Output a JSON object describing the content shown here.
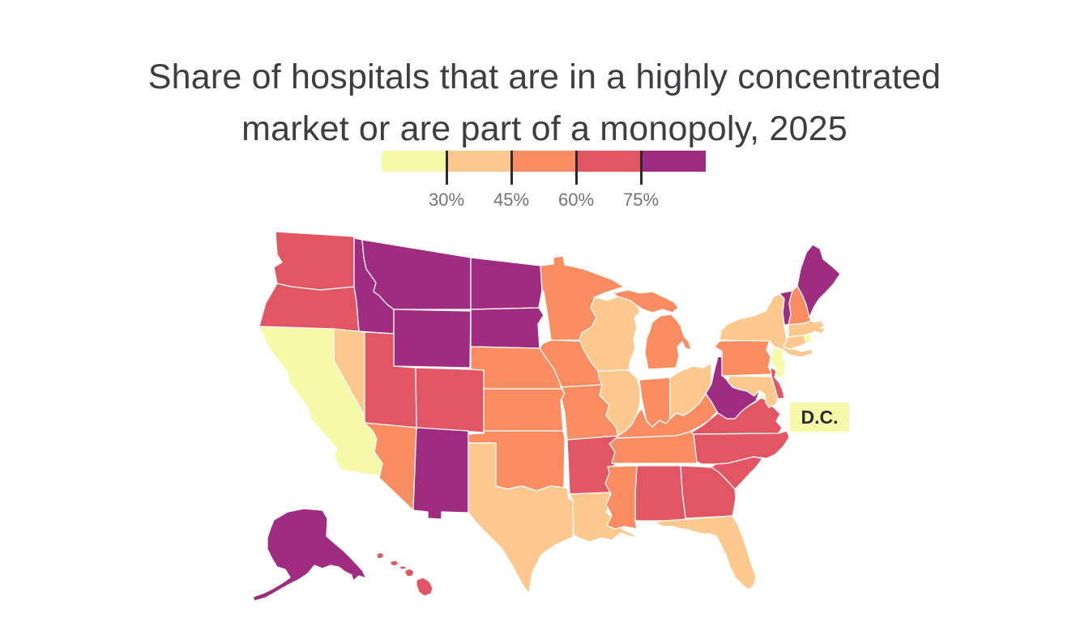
{
  "header": {
    "title_line1": "Share of hospitals that are in a highly concentrated",
    "title_line2": "market or are part of a monopoly, 2025"
  },
  "dc_callout": {
    "text": "D.C.",
    "background": "#F6F9A8"
  },
  "chart_data": {
    "type": "choropleth",
    "title": "Share of hospitals that are in a highly concentrated market or are part of a monopoly, 2025",
    "unit": "percent of hospitals",
    "legend": {
      "position": "top-center",
      "tick_labels": [
        "30%",
        "45%",
        "60%",
        "75%"
      ],
      "tick_values": [
        30,
        45,
        60,
        75
      ],
      "tick_color": "#2a2a2e",
      "buckets": [
        {
          "key": "under_30",
          "range": "<30%",
          "color": "#F6F9A8"
        },
        {
          "key": "30_45",
          "range": "30-45%",
          "color": "#FCC88D"
        },
        {
          "key": "45_60",
          "range": "45-60%",
          "color": "#F98C60"
        },
        {
          "key": "60_75",
          "range": "60-75%",
          "color": "#E25562"
        },
        {
          "key": "over_75",
          "range": ">75%",
          "color": "#A02C81"
        }
      ]
    },
    "states": [
      {
        "abbr": "CA",
        "name": "California",
        "bucket": "under_30"
      },
      {
        "abbr": "NJ",
        "name": "New Jersey",
        "bucket": "under_30"
      },
      {
        "abbr": "RI",
        "name": "Rhode Island",
        "bucket": "under_30"
      },
      {
        "abbr": "DC",
        "name": "District of Columbia",
        "bucket": "under_30"
      },
      {
        "abbr": "NV",
        "name": "Nevada",
        "bucket": "30_45"
      },
      {
        "abbr": "TX",
        "name": "Texas",
        "bucket": "30_45"
      },
      {
        "abbr": "LA",
        "name": "Louisiana",
        "bucket": "30_45"
      },
      {
        "abbr": "FL",
        "name": "Florida",
        "bucket": "30_45"
      },
      {
        "abbr": "WI",
        "name": "Wisconsin",
        "bucket": "30_45"
      },
      {
        "abbr": "IL",
        "name": "Illinois",
        "bucket": "30_45"
      },
      {
        "abbr": "OH",
        "name": "Ohio",
        "bucket": "30_45"
      },
      {
        "abbr": "NY",
        "name": "New York",
        "bucket": "30_45"
      },
      {
        "abbr": "MA",
        "name": "Massachusetts",
        "bucket": "30_45"
      },
      {
        "abbr": "CT",
        "name": "Connecticut",
        "bucket": "30_45"
      },
      {
        "abbr": "MD",
        "name": "Maryland",
        "bucket": "30_45"
      },
      {
        "abbr": "AZ",
        "name": "Arizona",
        "bucket": "45_60"
      },
      {
        "abbr": "OK",
        "name": "Oklahoma",
        "bucket": "45_60"
      },
      {
        "abbr": "KS",
        "name": "Kansas",
        "bucket": "45_60"
      },
      {
        "abbr": "NE",
        "name": "Nebraska",
        "bucket": "45_60"
      },
      {
        "abbr": "MO",
        "name": "Missouri",
        "bucket": "45_60"
      },
      {
        "abbr": "IA",
        "name": "Iowa",
        "bucket": "45_60"
      },
      {
        "abbr": "MN",
        "name": "Minnesota",
        "bucket": "45_60"
      },
      {
        "abbr": "MI",
        "name": "Michigan",
        "bucket": "45_60"
      },
      {
        "abbr": "IN",
        "name": "Indiana",
        "bucket": "45_60"
      },
      {
        "abbr": "KY",
        "name": "Kentucky",
        "bucket": "45_60"
      },
      {
        "abbr": "TN",
        "name": "Tennessee",
        "bucket": "45_60"
      },
      {
        "abbr": "MS",
        "name": "Mississippi",
        "bucket": "45_60"
      },
      {
        "abbr": "NH",
        "name": "New Hampshire",
        "bucket": "45_60"
      },
      {
        "abbr": "PA",
        "name": "Pennsylvania",
        "bucket": "45_60"
      },
      {
        "abbr": "WA",
        "name": "Washington",
        "bucket": "60_75"
      },
      {
        "abbr": "OR",
        "name": "Oregon",
        "bucket": "60_75"
      },
      {
        "abbr": "UT",
        "name": "Utah",
        "bucket": "60_75"
      },
      {
        "abbr": "CO",
        "name": "Colorado",
        "bucket": "60_75"
      },
      {
        "abbr": "AR",
        "name": "Arkansas",
        "bucket": "60_75"
      },
      {
        "abbr": "AL",
        "name": "Alabama",
        "bucket": "60_75"
      },
      {
        "abbr": "GA",
        "name": "Georgia",
        "bucket": "60_75"
      },
      {
        "abbr": "SC",
        "name": "South Carolina",
        "bucket": "60_75"
      },
      {
        "abbr": "NC",
        "name": "North Carolina",
        "bucket": "60_75"
      },
      {
        "abbr": "VA",
        "name": "Virginia",
        "bucket": "60_75"
      },
      {
        "abbr": "DE",
        "name": "Delaware",
        "bucket": "60_75"
      },
      {
        "abbr": "HI",
        "name": "Hawaii",
        "bucket": "60_75"
      },
      {
        "abbr": "ID",
        "name": "Idaho",
        "bucket": "over_75"
      },
      {
        "abbr": "MT",
        "name": "Montana",
        "bucket": "over_75"
      },
      {
        "abbr": "WY",
        "name": "Wyoming",
        "bucket": "over_75"
      },
      {
        "abbr": "ND",
        "name": "North Dakota",
        "bucket": "over_75"
      },
      {
        "abbr": "SD",
        "name": "South Dakota",
        "bucket": "over_75"
      },
      {
        "abbr": "NM",
        "name": "New Mexico",
        "bucket": "over_75"
      },
      {
        "abbr": "WV",
        "name": "West Virginia",
        "bucket": "over_75"
      },
      {
        "abbr": "VT",
        "name": "Vermont",
        "bucket": "over_75"
      },
      {
        "abbr": "ME",
        "name": "Maine",
        "bucket": "over_75"
      },
      {
        "abbr": "AK",
        "name": "Alaska",
        "bucket": "over_75"
      }
    ]
  }
}
